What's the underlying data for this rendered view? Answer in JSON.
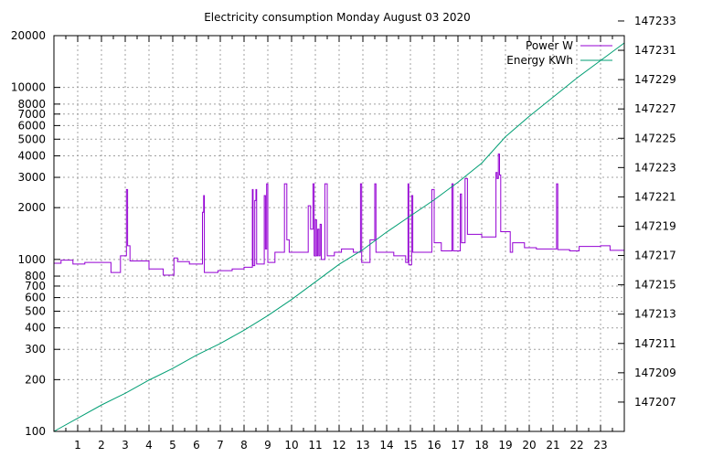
{
  "chart_data": {
    "type": "line",
    "title": "Electricity consumption Monday August 03 2020",
    "xlabel": "",
    "ylabel": "",
    "y2label": "",
    "x_range": [
      0,
      24
    ],
    "x_ticks": [
      1,
      2,
      3,
      4,
      5,
      6,
      7,
      8,
      9,
      10,
      11,
      12,
      13,
      14,
      15,
      16,
      17,
      18,
      19,
      20,
      21,
      22,
      23
    ],
    "y_scale": "log",
    "y_range": [
      100,
      20000
    ],
    "y_ticks": [
      100,
      200,
      300,
      400,
      500,
      600,
      700,
      800,
      1000,
      2000,
      3000,
      4000,
      5000,
      6000,
      7000,
      8000,
      10000,
      20000
    ],
    "y2_range": [
      147205,
      147232
    ],
    "y2_ticks": [
      147207,
      147209,
      147211,
      147213,
      147215,
      147217,
      147219,
      147221,
      147223,
      147225,
      147227,
      147229,
      147231,
      147233
    ],
    "grid": true,
    "legend_position": "top-right",
    "series": [
      {
        "name": "Power W",
        "axis": "y",
        "color": "#9400d3",
        "points": [
          [
            0.0,
            950
          ],
          [
            0.3,
            950
          ],
          [
            0.3,
            990
          ],
          [
            0.8,
            990
          ],
          [
            0.8,
            940
          ],
          [
            1.3,
            940
          ],
          [
            1.3,
            960
          ],
          [
            2.4,
            960
          ],
          [
            2.4,
            840
          ],
          [
            2.8,
            840
          ],
          [
            2.8,
            1050
          ],
          [
            3.05,
            1050
          ],
          [
            3.05,
            2550
          ],
          [
            3.1,
            2550
          ],
          [
            3.1,
            1200
          ],
          [
            3.2,
            1200
          ],
          [
            3.2,
            980
          ],
          [
            4.0,
            980
          ],
          [
            4.0,
            880
          ],
          [
            4.6,
            880
          ],
          [
            4.6,
            810
          ],
          [
            5.05,
            810
          ],
          [
            5.05,
            1020
          ],
          [
            5.2,
            1020
          ],
          [
            5.2,
            970
          ],
          [
            5.7,
            970
          ],
          [
            5.7,
            940
          ],
          [
            6.25,
            940
          ],
          [
            6.25,
            1880
          ],
          [
            6.3,
            1880
          ],
          [
            6.3,
            2350
          ],
          [
            6.33,
            2350
          ],
          [
            6.33,
            840
          ],
          [
            6.9,
            840
          ],
          [
            6.9,
            860
          ],
          [
            7.5,
            860
          ],
          [
            7.5,
            880
          ],
          [
            8.0,
            880
          ],
          [
            8.0,
            900
          ],
          [
            8.35,
            900
          ],
          [
            8.35,
            2550
          ],
          [
            8.38,
            2550
          ],
          [
            8.38,
            920
          ],
          [
            8.45,
            920
          ],
          [
            8.45,
            2200
          ],
          [
            8.5,
            2200
          ],
          [
            8.5,
            2550
          ],
          [
            8.53,
            2550
          ],
          [
            8.53,
            940
          ],
          [
            8.85,
            940
          ],
          [
            8.85,
            2350
          ],
          [
            8.9,
            2350
          ],
          [
            8.9,
            1150
          ],
          [
            8.95,
            1150
          ],
          [
            8.95,
            2750
          ],
          [
            9.0,
            2750
          ],
          [
            9.0,
            960
          ],
          [
            9.3,
            960
          ],
          [
            9.3,
            1100
          ],
          [
            9.7,
            1100
          ],
          [
            9.7,
            2750
          ],
          [
            9.8,
            2750
          ],
          [
            9.8,
            1300
          ],
          [
            9.9,
            1300
          ],
          [
            9.9,
            1100
          ],
          [
            10.7,
            1100
          ],
          [
            10.7,
            2050
          ],
          [
            10.8,
            2050
          ],
          [
            10.8,
            1500
          ],
          [
            10.9,
            1500
          ],
          [
            10.9,
            2750
          ],
          [
            10.95,
            2750
          ],
          [
            10.95,
            1050
          ],
          [
            11.0,
            1050
          ],
          [
            11.0,
            1700
          ],
          [
            11.05,
            1700
          ],
          [
            11.05,
            1050
          ],
          [
            11.1,
            1050
          ],
          [
            11.1,
            1500
          ],
          [
            11.15,
            1500
          ],
          [
            11.15,
            1050
          ],
          [
            11.2,
            1050
          ],
          [
            11.2,
            1600
          ],
          [
            11.25,
            1600
          ],
          [
            11.25,
            1000
          ],
          [
            11.4,
            1000
          ],
          [
            11.4,
            2750
          ],
          [
            11.5,
            2750
          ],
          [
            11.5,
            1050
          ],
          [
            11.8,
            1050
          ],
          [
            11.8,
            1100
          ],
          [
            12.1,
            1100
          ],
          [
            12.1,
            1150
          ],
          [
            12.6,
            1150
          ],
          [
            12.6,
            1100
          ],
          [
            12.9,
            1100
          ],
          [
            12.9,
            2750
          ],
          [
            12.95,
            2750
          ],
          [
            12.95,
            960
          ],
          [
            13.3,
            960
          ],
          [
            13.3,
            1300
          ],
          [
            13.5,
            1300
          ],
          [
            13.5,
            2750
          ],
          [
            13.55,
            2750
          ],
          [
            13.55,
            1100
          ],
          [
            14.3,
            1100
          ],
          [
            14.3,
            1050
          ],
          [
            14.8,
            1050
          ],
          [
            14.8,
            960
          ],
          [
            14.9,
            960
          ],
          [
            14.9,
            2750
          ],
          [
            14.93,
            2750
          ],
          [
            14.93,
            930
          ],
          [
            15.05,
            930
          ],
          [
            15.05,
            2350
          ],
          [
            15.1,
            2350
          ],
          [
            15.1,
            1100
          ],
          [
            15.9,
            1100
          ],
          [
            15.9,
            2550
          ],
          [
            16.0,
            2550
          ],
          [
            16.0,
            1250
          ],
          [
            16.3,
            1250
          ],
          [
            16.3,
            1120
          ],
          [
            16.75,
            1120
          ],
          [
            16.75,
            2750
          ],
          [
            16.8,
            2750
          ],
          [
            16.8,
            1120
          ],
          [
            17.1,
            1120
          ],
          [
            17.1,
            2400
          ],
          [
            17.15,
            2400
          ],
          [
            17.15,
            1250
          ],
          [
            17.3,
            1250
          ],
          [
            17.3,
            2950
          ],
          [
            17.4,
            2950
          ],
          [
            17.4,
            1400
          ],
          [
            18.0,
            1400
          ],
          [
            18.0,
            1350
          ],
          [
            18.6,
            1350
          ],
          [
            18.6,
            3200
          ],
          [
            18.65,
            3200
          ],
          [
            18.65,
            2950
          ],
          [
            18.7,
            2950
          ],
          [
            18.7,
            4100
          ],
          [
            18.75,
            4100
          ],
          [
            18.75,
            3100
          ],
          [
            18.8,
            3100
          ],
          [
            18.8,
            1450
          ],
          [
            19.2,
            1450
          ],
          [
            19.2,
            1100
          ],
          [
            19.3,
            1100
          ],
          [
            19.3,
            1250
          ],
          [
            19.8,
            1250
          ],
          [
            19.8,
            1170
          ],
          [
            20.3,
            1170
          ],
          [
            20.3,
            1150
          ],
          [
            21.15,
            1150
          ],
          [
            21.15,
            2750
          ],
          [
            21.2,
            2750
          ],
          [
            21.2,
            1140
          ],
          [
            21.7,
            1140
          ],
          [
            21.7,
            1120
          ],
          [
            22.1,
            1120
          ],
          [
            22.1,
            1190
          ],
          [
            23.0,
            1190
          ],
          [
            23.0,
            1200
          ],
          [
            23.4,
            1200
          ],
          [
            23.4,
            1130
          ],
          [
            24.0,
            1130
          ]
        ]
      },
      {
        "name": "Energy KWh",
        "axis": "y2",
        "color": "#009e73",
        "points": [
          [
            0,
            147205.0
          ],
          [
            1,
            147205.9
          ],
          [
            2,
            147206.8
          ],
          [
            3,
            147207.6
          ],
          [
            4,
            147208.5
          ],
          [
            5,
            147209.3
          ],
          [
            6,
            147210.2
          ],
          [
            7,
            147211.0
          ],
          [
            8,
            147211.9
          ],
          [
            9,
            147212.9
          ],
          [
            10,
            147214.0
          ],
          [
            11,
            147215.2
          ],
          [
            12,
            147216.4
          ],
          [
            13,
            147217.4
          ],
          [
            14,
            147218.6
          ],
          [
            15,
            147219.7
          ],
          [
            16,
            147220.8
          ],
          [
            17,
            147222.0
          ],
          [
            18,
            147223.3
          ],
          [
            19,
            147225.1
          ],
          [
            20,
            147226.5
          ],
          [
            21,
            147227.8
          ],
          [
            22,
            147229.1
          ],
          [
            23,
            147230.3
          ],
          [
            24,
            147231.5
          ]
        ]
      }
    ]
  }
}
